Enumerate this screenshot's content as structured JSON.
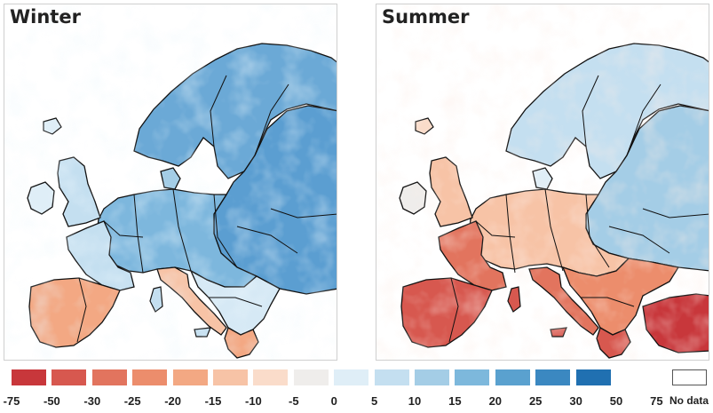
{
  "panels": [
    {
      "title": "Winter",
      "tone": "cool"
    },
    {
      "title": "Summer",
      "tone": "mixed"
    }
  ],
  "legend": {
    "colors": [
      "#c8373b",
      "#d7584f",
      "#e2745e",
      "#ec8d6c",
      "#f3a883",
      "#f7c3a6",
      "#fadcca",
      "#efedeb",
      "#dfeef7",
      "#c4dff0",
      "#a4cde6",
      "#7db8dc",
      "#5aa1cf",
      "#3b88c1",
      "#2070b1"
    ],
    "ticks": [
      "-75",
      "-50",
      "-30",
      "-25",
      "-20",
      "-15",
      "-10",
      "-5",
      "0",
      "5",
      "10",
      "15",
      "20",
      "25",
      "30",
      "50",
      "75"
    ],
    "no_data_label": "No data"
  }
}
